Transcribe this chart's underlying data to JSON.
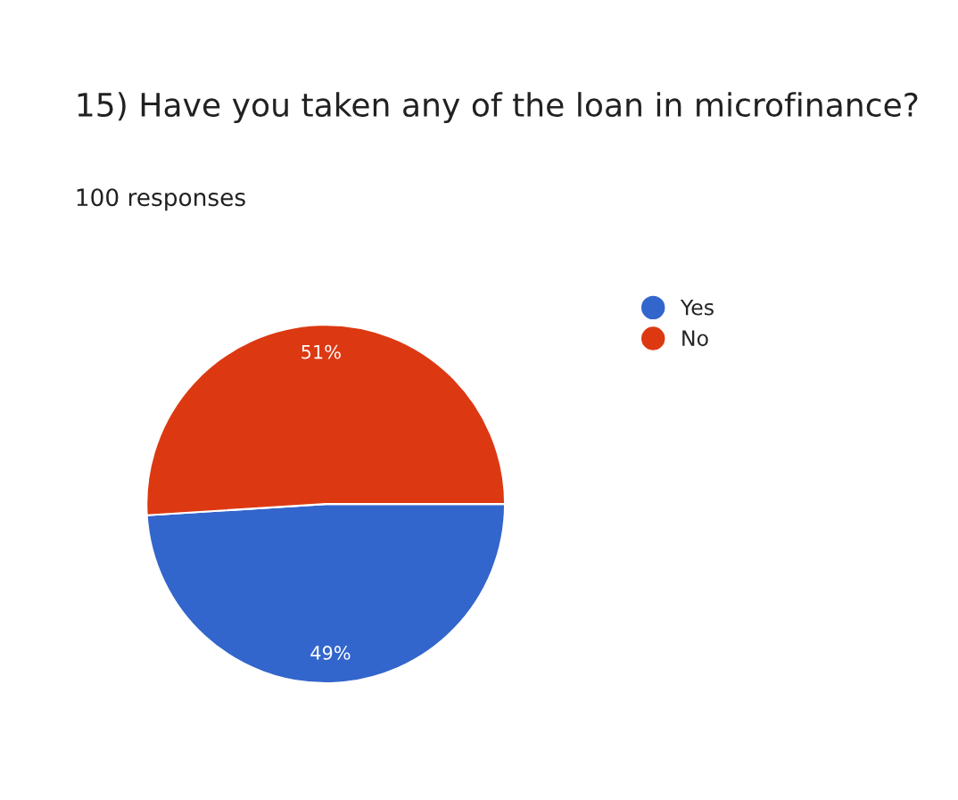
{
  "chart_data": {
    "type": "pie",
    "title": "15) Have you taken any of the loan in microfinance?",
    "subtitle": "100 responses",
    "categories": [
      "Yes",
      "No"
    ],
    "values": [
      49,
      51
    ],
    "colors": [
      "#3366cc",
      "#dc3912"
    ],
    "value_labels": [
      "49%",
      "51%"
    ],
    "legend": "top right"
  }
}
